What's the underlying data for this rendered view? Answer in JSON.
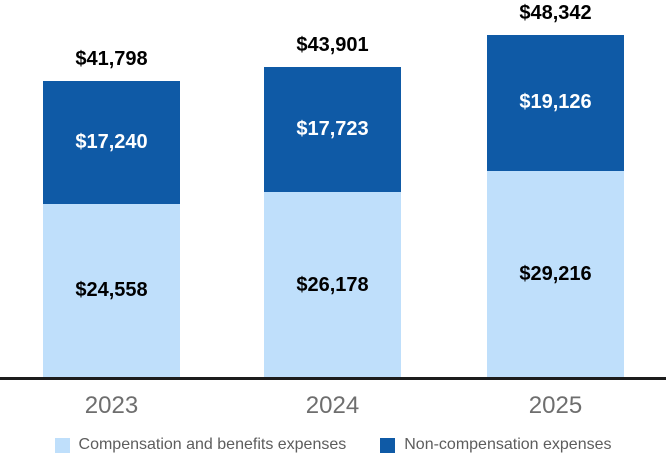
{
  "chart_data": {
    "type": "bar",
    "subtype": "stacked-vertical",
    "title": "",
    "xlabel": "",
    "ylabel": "",
    "grid": false,
    "legend_position": "bottom",
    "categories": [
      "2023",
      "2024",
      "2025"
    ],
    "series": [
      {
        "name": "Compensation and benefits expenses",
        "color": "#bfdffb",
        "label_color": "#000000",
        "values": [
          24558,
          26178,
          29216
        ],
        "labels": [
          "$24,558",
          "$26,178",
          "$29,216"
        ]
      },
      {
        "name": "Non-compensation expenses",
        "color": "#0f5aa6",
        "label_color": "#ffffff",
        "values": [
          17240,
          17723,
          19126
        ],
        "labels": [
          "$17,240",
          "$17,723",
          "$19,126"
        ]
      }
    ],
    "totals": [
      41798,
      43901,
      48342
    ],
    "total_labels": [
      "$41,798",
      "$43,901",
      "$48,342"
    ],
    "axis": {
      "baseline_color": "#1c1c1c",
      "tick_label_color": "#6e6e6e"
    }
  },
  "legend": {
    "items": [
      {
        "label": "Compensation and benefits expenses",
        "color": "#bfdffb"
      },
      {
        "label": "Non-compensation expenses",
        "color": "#0f5aa6"
      }
    ]
  }
}
